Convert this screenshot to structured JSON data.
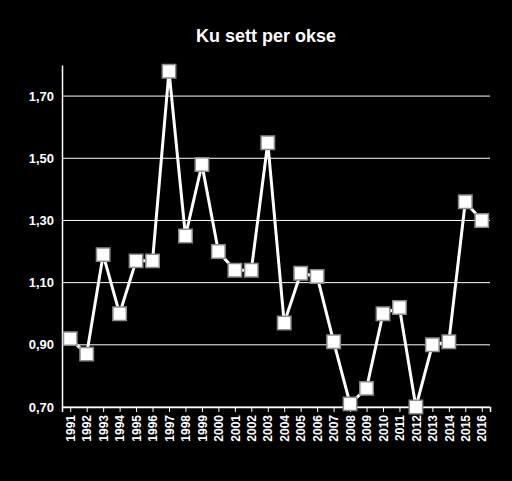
{
  "chart_data": {
    "type": "line",
    "title": "Ku sett per okse",
    "categories": [
      "1991",
      "1992",
      "1993",
      "1994",
      "1995",
      "1996",
      "1997",
      "1998",
      "1999",
      "2000",
      "2001",
      "2002",
      "2003",
      "2004",
      "2005",
      "2006",
      "2007",
      "2008",
      "2009",
      "2010",
      "2011",
      "2012",
      "2013",
      "2014",
      "2015",
      "2016"
    ],
    "values": [
      0.92,
      0.87,
      1.19,
      1.0,
      1.17,
      1.17,
      1.78,
      1.25,
      1.48,
      1.2,
      1.14,
      1.14,
      1.55,
      0.97,
      1.13,
      1.12,
      0.91,
      0.71,
      0.76,
      1.0,
      1.02,
      0.7,
      0.9,
      0.91,
      1.36,
      1.3
    ],
    "color": "#ffffff",
    "marker": "square",
    "line_style": "solid",
    "ylim": [
      0.7,
      1.8
    ],
    "yticks": [
      {
        "value": 0.7,
        "label": "0,70"
      },
      {
        "value": 0.9,
        "label": "0,90"
      },
      {
        "value": 1.1,
        "label": "1,10"
      },
      {
        "value": 1.3,
        "label": "1,30"
      },
      {
        "value": 1.5,
        "label": "1,50"
      },
      {
        "value": 1.7,
        "label": "1,70"
      }
    ],
    "grid": true
  }
}
